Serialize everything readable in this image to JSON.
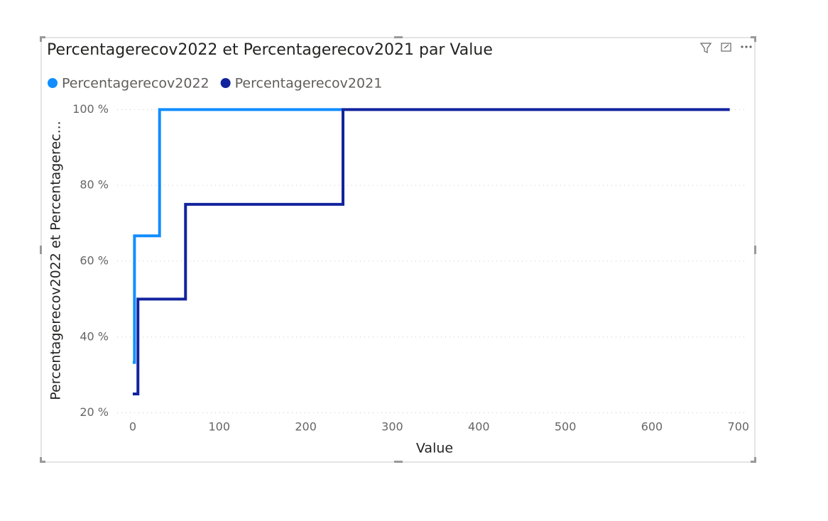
{
  "chart_data": {
    "type": "step-line",
    "title": "Percentagerecov2022 et Percentagerecov2021 par Value",
    "x_label": "Value",
    "y_label": "Percentagerecov2022 et Percentagerec...",
    "series": [
      {
        "name": "Percentagerecov2022",
        "color": "#118DFF",
        "x": [
          0,
          2,
          31,
          243
        ],
        "values": [
          33.3,
          66.7,
          100,
          100
        ]
      },
      {
        "name": "Percentagerecov2021",
        "color": "#12239E",
        "x": [
          0,
          6,
          61,
          243,
          690
        ],
        "values": [
          25,
          50,
          75,
          100,
          100
        ]
      }
    ],
    "xlim": [
      -18,
      710
    ],
    "xticks": [
      0,
      100,
      200,
      300,
      400,
      500,
      600,
      700
    ],
    "ylim": [
      19,
      101
    ],
    "yticks": [
      {
        "value": 20,
        "label": "20 %"
      },
      {
        "value": 40,
        "label": "40 %"
      },
      {
        "value": 60,
        "label": "60 %"
      },
      {
        "value": 80,
        "label": "80 %"
      },
      {
        "value": 100,
        "label": "100 %"
      }
    ],
    "grid": true,
    "legend": "top-left"
  }
}
